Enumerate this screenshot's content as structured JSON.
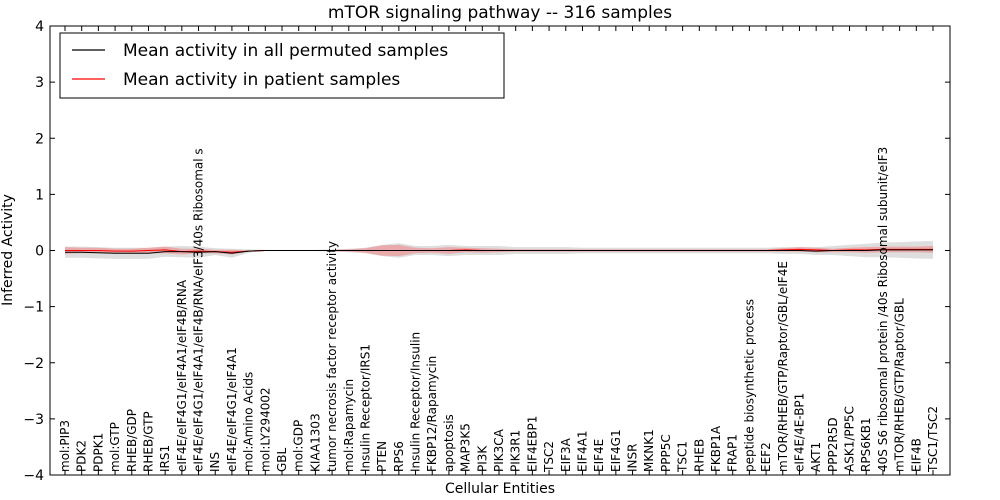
{
  "chart_data": {
    "type": "line",
    "title": "mTOR signaling pathway -- 316 samples",
    "xlabel": "Cellular Entities",
    "ylabel": "Inferred Activity",
    "ylim": [
      -4,
      4
    ],
    "yticks": [
      "−4",
      "−3",
      "−2",
      "−1",
      "0",
      "1",
      "2",
      "3",
      "4"
    ],
    "grid": false,
    "legend_position": "top-left",
    "colors": {
      "permuted": "#000000",
      "patient": "#ff0000",
      "permuted_band": "#c8c8c8",
      "patient_band": "#f08080"
    },
    "categories": [
      "mol:PIP3",
      "PDK2",
      "PDPK1",
      "mol:GTP",
      "RHEB/GDP",
      "RHEB/GTP",
      "IRS1",
      "eIF4E/eIF4G1/eIF4A1/eIF4B/RNA",
      "eIF4E/eIF4G1/eIF4A1/eIF4B/RNA/eIF3/40s Ribosomal s",
      "INS",
      "eIF4E/eIF4G1/eIF4A1",
      "mol:Amino Acids",
      "mol:LY294002",
      "GBL",
      "mol:GDP",
      "KIAA1303",
      "tumor necrosis factor receptor activity",
      "mol:Rapamycin",
      "Insulin Receptor/IRS1",
      "PTEN",
      "RPS6",
      "Insulin Receptor/Insulin",
      "FKBP12/Rapamycin",
      "apoptosis",
      "MAP3K5",
      "PI3K",
      "PIK3CA",
      "PIK3R1",
      "EIF4EBP1",
      "TSC2",
      "EIF3A",
      "EIF4A1",
      "EIF4E",
      "EIF4G1",
      "INSR",
      "MKNK1",
      "PPP5C",
      "TSC1",
      "RHEB",
      "FKBP1A",
      "FRAP1",
      "peptide biosynthetic process",
      "EEF2",
      "mTOR/RHEB/GTP/Raptor/GBL/eIF4E",
      "eIF4E/4E-BP1",
      "AKT1",
      "PPP2R5D",
      "ASK1/PP5C",
      "RPS6KB1",
      "40S S6 ribosomal protein /40s Ribosomal subunit/eIF3",
      "mTOR/RHEB/GTP/Raptor/GBL",
      "EIF4B",
      "TSC1/TSC2"
    ],
    "series": [
      {
        "name": "Mean activity in all permuted samples",
        "color": "#000000",
        "values": [
          -0.03,
          -0.03,
          -0.04,
          -0.05,
          -0.05,
          -0.05,
          -0.02,
          -0.02,
          -0.03,
          -0.02,
          -0.05,
          -0.01,
          0,
          0,
          0,
          0,
          0,
          0,
          0,
          0,
          0,
          0,
          0,
          0,
          0,
          0,
          0,
          0,
          0,
          0,
          0,
          0,
          0,
          0,
          0,
          0,
          0,
          0,
          0,
          0,
          0,
          0,
          0,
          0,
          0,
          -0.01,
          0,
          0,
          0,
          0.01,
          0.01,
          0.01,
          0.01
        ],
        "band": [
          0.1,
          0.1,
          0.1,
          0.1,
          0.1,
          0.1,
          0.09,
          0.1,
          0.1,
          0.06,
          0.08,
          0.03,
          0.01,
          0.01,
          0.01,
          0.01,
          0.02,
          0.03,
          0.05,
          0.1,
          0.13,
          0.08,
          0.08,
          0.1,
          0.08,
          0.08,
          0.08,
          0.06,
          0.06,
          0.06,
          0.06,
          0.05,
          0.05,
          0.05,
          0.05,
          0.05,
          0.05,
          0.05,
          0.05,
          0.05,
          0.05,
          0.05,
          0.05,
          0.06,
          0.06,
          0.07,
          0.08,
          0.1,
          0.12,
          0.13,
          0.14,
          0.15,
          0.16
        ]
      },
      {
        "name": "Mean activity in patient samples",
        "color": "#ff0000",
        "values": [
          0.0,
          0.0,
          0.0,
          -0.01,
          -0.01,
          0.0,
          0.01,
          -0.02,
          -0.01,
          -0.02,
          -0.03,
          -0.01,
          0,
          0,
          0,
          0,
          0,
          0,
          0,
          0,
          0,
          0,
          0,
          0,
          0.01,
          0,
          0,
          0,
          0,
          0,
          0,
          0,
          0,
          0,
          0,
          0,
          0,
          0,
          0,
          0,
          0,
          0,
          0,
          0.01,
          0.02,
          0.01,
          0,
          0.01,
          0.01,
          0.02,
          0.02,
          0.02,
          0.02
        ],
        "band": [
          0.06,
          0.05,
          0.05,
          0.04,
          0.04,
          0.05,
          0.06,
          0.05,
          0.04,
          0.03,
          0.04,
          0.01,
          0.005,
          0.005,
          0.005,
          0.005,
          0.01,
          0.02,
          0.04,
          0.09,
          0.1,
          0.05,
          0.04,
          0.06,
          0.04,
          0.04,
          0.03,
          0.02,
          0.02,
          0.02,
          0.02,
          0.02,
          0.02,
          0.02,
          0.02,
          0.02,
          0.02,
          0.02,
          0.02,
          0.02,
          0.02,
          0.02,
          0.02,
          0.03,
          0.04,
          0.04,
          0.03,
          0.04,
          0.05,
          0.05,
          0.05,
          0.05,
          0.06
        ]
      }
    ]
  }
}
